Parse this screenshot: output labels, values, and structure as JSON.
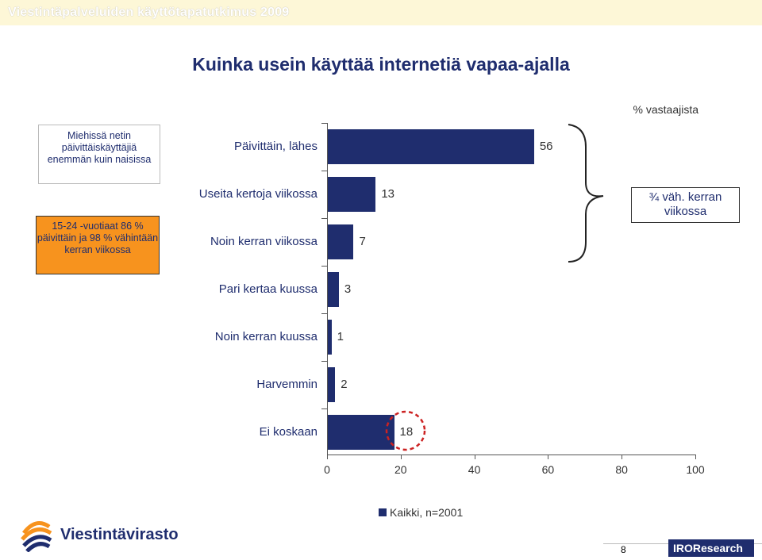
{
  "header": {
    "title": "Viestintäpalveluiden käyttötapatutkimus 2009"
  },
  "slide": {
    "title": "Kuinka usein käyttää internetiä vapaa-ajalla"
  },
  "notes": {
    "men": "Miehissä netin päivittäiskäyttäjiä enemmän kuin naisissa",
    "youth": "15-24 -vuotiaat 86 % päivittäin ja 98 % vähintään kerran viikossa"
  },
  "callout": {
    "label": "¾ väh. kerran viikossa"
  },
  "chart_data": {
    "type": "bar",
    "orientation": "horizontal",
    "unit_label": "% vastaajista",
    "categories": [
      "Päivittäin, lähes",
      "Useita kertoja viikossa",
      "Noin kerran viikossa",
      "Pari kertaa kuussa",
      "Noin kerran kuussa",
      "Harvemmin",
      "Ei koskaan"
    ],
    "series": [
      {
        "name": "Kaikki, n=2001",
        "values": [
          56,
          13,
          7,
          3,
          1,
          2,
          18
        ]
      }
    ],
    "value_labels": [
      "56",
      "13",
      "7",
      "3",
      "1",
      "2",
      "18"
    ],
    "xlim": [
      0,
      100
    ],
    "xticks": [
      "0",
      "20",
      "40",
      "60",
      "80",
      "100"
    ],
    "highlighted_value": "18",
    "bar_color": "#1f2d6e",
    "highlight_color": "#cc2222"
  },
  "legend": {
    "label": "Kaikki, n=2001"
  },
  "footer": {
    "page_number": "8",
    "logo_left": "Viestintävirasto",
    "logo_right": "IROResearch"
  }
}
